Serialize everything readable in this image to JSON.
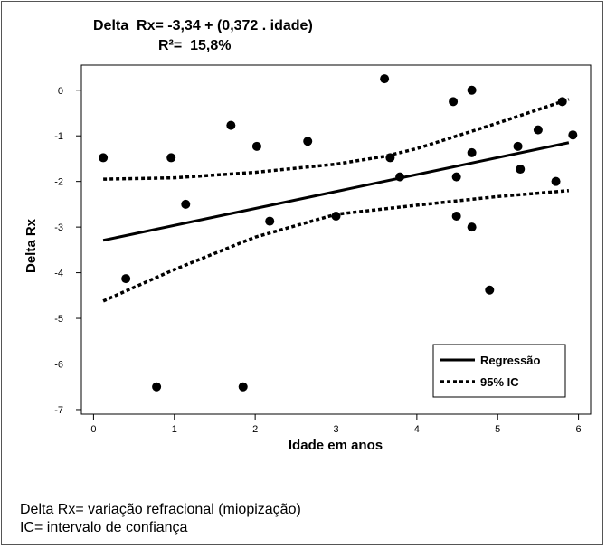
{
  "chart_data": {
    "type": "scatter",
    "title_line1": "Delta  Rx= -3,34 + (0,372 . idade)",
    "title_line2": "R²=  15,8%",
    "xlabel": "Idade em anos",
    "ylabel": "Delta Rx",
    "xlim": [
      -0.15,
      6.15
    ],
    "ylim": [
      -7.1,
      0.55
    ],
    "xticks": [
      0,
      1,
      2,
      3,
      4,
      5,
      6
    ],
    "xtick_labels": [
      "0",
      "1",
      "2",
      "3",
      "4",
      "5",
      "6"
    ],
    "yticks": [
      0,
      -1,
      -2,
      -3,
      -4,
      -5,
      -6,
      -7
    ],
    "ytick_labels": [
      "0",
      "-1",
      "-2",
      "-3",
      "-4",
      "-5",
      "-6",
      "-7"
    ],
    "grid": false,
    "points": [
      {
        "x": 0.12,
        "y": -1.48
      },
      {
        "x": 0.4,
        "y": -4.13
      },
      {
        "x": 0.78,
        "y": -6.5
      },
      {
        "x": 0.96,
        "y": -1.48
      },
      {
        "x": 1.14,
        "y": -2.5
      },
      {
        "x": 1.7,
        "y": -0.77
      },
      {
        "x": 1.85,
        "y": -6.5
      },
      {
        "x": 2.02,
        "y": -1.23
      },
      {
        "x": 2.18,
        "y": -2.87
      },
      {
        "x": 2.65,
        "y": -1.12
      },
      {
        "x": 3.0,
        "y": -2.76
      },
      {
        "x": 3.6,
        "y": 0.25
      },
      {
        "x": 3.67,
        "y": -1.48
      },
      {
        "x": 3.79,
        "y": -1.9
      },
      {
        "x": 4.45,
        "y": -0.25
      },
      {
        "x": 4.49,
        "y": -1.9
      },
      {
        "x": 4.49,
        "y": -2.76
      },
      {
        "x": 4.68,
        "y": 0.0
      },
      {
        "x": 4.68,
        "y": -1.37
      },
      {
        "x": 4.68,
        "y": -3.0
      },
      {
        "x": 4.9,
        "y": -4.38
      },
      {
        "x": 5.25,
        "y": -1.23
      },
      {
        "x": 5.28,
        "y": -1.73
      },
      {
        "x": 5.5,
        "y": -0.87
      },
      {
        "x": 5.72,
        "y": -2.0
      },
      {
        "x": 5.8,
        "y": -0.25
      },
      {
        "x": 5.93,
        "y": -0.98
      }
    ],
    "series": [
      {
        "name": "Regressão",
        "style": "solid",
        "x": [
          0.12,
          5.88
        ],
        "y": [
          -3.29,
          -1.15
        ]
      },
      {
        "name": "95%  IC",
        "style": "dotted",
        "x": [
          0.12,
          1,
          2,
          3,
          3.6,
          4,
          5,
          5.88
        ],
        "y": [
          -1.95,
          -1.92,
          -1.8,
          -1.62,
          -1.45,
          -1.28,
          -0.72,
          -0.2
        ]
      },
      {
        "name": "95%  IC lower",
        "style": "dotted",
        "x": [
          0.12,
          1,
          2,
          3,
          3.6,
          4,
          5,
          5.88
        ],
        "y": [
          -4.62,
          -3.93,
          -3.22,
          -2.72,
          -2.6,
          -2.52,
          -2.33,
          -2.2
        ]
      }
    ],
    "legend": {
      "position": "bottom-right",
      "entries": [
        "Regressão",
        "95%  IC"
      ]
    },
    "colors": {
      "points": "#000000",
      "lines": "#000000",
      "background": "#ffffff"
    }
  },
  "footnotes": {
    "line1": "Delta Rx= variação refracional (miopização)",
    "line2": "IC= intervalo de confiança"
  }
}
